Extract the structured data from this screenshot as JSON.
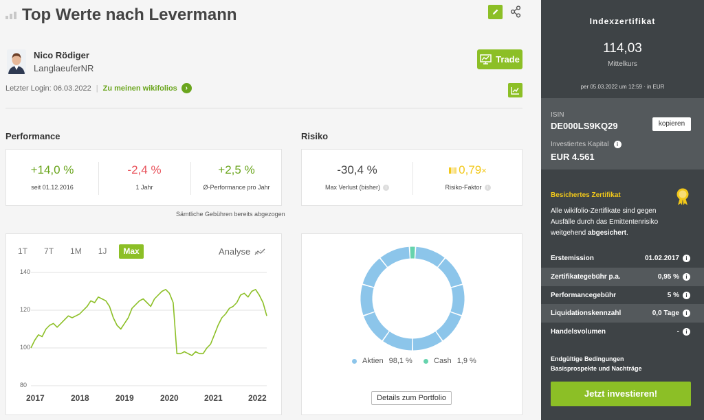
{
  "header": {
    "title": "Top Werte nach Levermann"
  },
  "trader": {
    "name": "Nico Rödiger",
    "handle": "LanglaeuferNR",
    "last_login": "Letzter Login: 06.03.2022",
    "portfolios_link": "Zu meinen wikifolios",
    "trade_label": "Trade"
  },
  "performance": {
    "heading": "Performance",
    "metrics": [
      {
        "value": "+14,0 %",
        "label": "seit 01.12.2016"
      },
      {
        "value": "-2,4 %",
        "label": "1 Jahr"
      },
      {
        "value": "+2,5 %",
        "label": "Ø-Performance pro Jahr"
      }
    ],
    "fee_note": "Sämtliche Gebühren bereits abgezogen"
  },
  "risk": {
    "heading": "Risiko",
    "metrics": [
      {
        "value": "-30,4 %",
        "label": "Max Verlust (bisher)"
      },
      {
        "value": "0,79",
        "suffix": "×",
        "label": "Risiko-Faktor"
      }
    ]
  },
  "chart_panel": {
    "tabs": [
      "1T",
      "7T",
      "1M",
      "1J",
      "Max"
    ],
    "active_tab": "Max",
    "analyse_label": "Analyse"
  },
  "chart_data": [
    {
      "type": "line",
      "x": [
        "2016-12",
        "2017-01",
        "2017-02",
        "2017-03",
        "2017-04",
        "2017-05",
        "2017-06",
        "2017-07",
        "2017-08",
        "2017-09",
        "2017-10",
        "2017-11",
        "2017-12",
        "2018-01",
        "2018-02",
        "2018-03",
        "2018-04",
        "2018-05",
        "2018-06",
        "2018-07",
        "2018-08",
        "2018-09",
        "2018-10",
        "2018-11",
        "2018-12",
        "2019-01",
        "2019-02",
        "2019-03",
        "2019-04",
        "2019-05",
        "2019-06",
        "2019-07",
        "2019-08",
        "2019-09",
        "2019-10",
        "2019-11",
        "2019-12",
        "2020-01",
        "2020-02",
        "2020-03",
        "2020-04",
        "2020-05",
        "2020-06",
        "2020-07",
        "2020-08",
        "2020-09",
        "2020-10",
        "2020-11",
        "2020-12",
        "2021-01",
        "2021-02",
        "2021-03",
        "2021-04",
        "2021-05",
        "2021-06",
        "2021-07",
        "2021-08",
        "2021-09",
        "2021-10",
        "2021-11",
        "2021-12",
        "2022-01",
        "2022-02",
        "2022-03"
      ],
      "series": [
        {
          "values": [
            100,
            104,
            107,
            106,
            110,
            112,
            113,
            111,
            113,
            115,
            117,
            116,
            117,
            118,
            120,
            122,
            125,
            124,
            127,
            126,
            125,
            122,
            116,
            112,
            110,
            113,
            116,
            121,
            123,
            125,
            126,
            124,
            122,
            126,
            128,
            130,
            131,
            129,
            124,
            97,
            97,
            98,
            97,
            96,
            98,
            97,
            97,
            100,
            102,
            107,
            112,
            116,
            118,
            121,
            122,
            124,
            128,
            129,
            127,
            130,
            131,
            128,
            124,
            117
          ]
        }
      ],
      "y_ticks": [
        80,
        100,
        120,
        140
      ],
      "x_ticks": [
        "2017",
        "2018",
        "2019",
        "2020",
        "2021",
        "2022"
      ],
      "ylim": [
        80,
        140
      ],
      "grid": true,
      "colors": {
        "line": "#8cbf26"
      }
    },
    {
      "type": "pie",
      "categories": [
        "Aktien",
        "Cash"
      ],
      "values": [
        98.1,
        1.9
      ],
      "labels": [
        "98,1 %",
        "1,9 %"
      ],
      "colors": [
        "#8cc5ea",
        "#66d3ad"
      ]
    }
  ],
  "portfolio_button": "Details zum Portfolio",
  "sidebar": {
    "title": "Indexzertifikat",
    "price": "114,03",
    "price_label": "Mittelkurs",
    "as_of": "per 05.03.2022 um 12:59 · in EUR",
    "isin_label": "ISIN",
    "isin": "DE000LS9KQ29",
    "copy_label": "kopieren",
    "capital_label": "Investiertes Kapital",
    "capital": "EUR 4.561",
    "secured_title": "Besichertes Zertifikat",
    "secured_text_pre": "Alle wikifolio-Zertifikate sind gegen Ausfälle durch das Emittentenrisiko weitgehend ",
    "secured_text_bold": "abgesichert",
    "secured_text_post": ".",
    "facts": [
      {
        "label": "Erstemission",
        "value": "01.02.2017"
      },
      {
        "label": "Zertifikategebühr p.a.",
        "value": "0,95 %"
      },
      {
        "label": "Performancegebühr",
        "value": "5 %"
      },
      {
        "label": "Liquidationskennzahl",
        "value": "0,0 Tage"
      },
      {
        "label": "Handelsvolumen",
        "value": "-"
      }
    ],
    "docs": [
      "Endgültige Bedingungen",
      "Basisprospekte und Nachträge"
    ],
    "invest_label": "Jetzt investieren!"
  },
  "colors": {
    "brand_green": "#8cbf26",
    "link_green": "#6aa51d",
    "negative_red": "#e8515a",
    "sidebar_bg": "#3e4346",
    "sidebar_alt": "#54595c",
    "highlight_yellow": "#f2c81a"
  }
}
